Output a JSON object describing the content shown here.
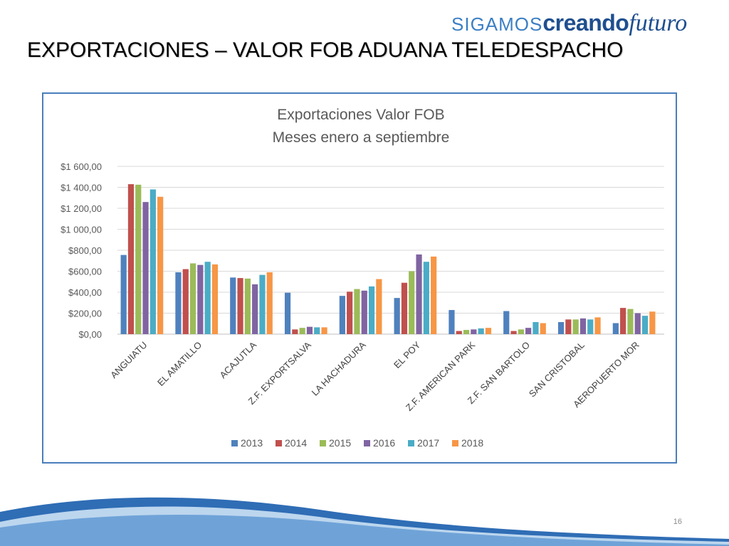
{
  "header": {
    "logo": {
      "part1": "SIGAMOS",
      "part2": "creando",
      "part3": "futuro"
    },
    "title": "EXPORTACIONES –  VALOR FOB ADUANA TELEDESPACHO"
  },
  "footer": {
    "page_number": "16"
  },
  "chart_data": {
    "type": "bar",
    "title": "Exportaciones Valor FOB",
    "subtitle": "Meses enero a septiembre",
    "xlabel": "",
    "ylabel": "",
    "ylim": [
      0,
      1600
    ],
    "yticks": [
      "$0,00",
      "$200,00",
      "$400,00",
      "$600,00",
      "$800,00",
      "$1 000,00",
      "$1 200,00",
      "$1 400,00",
      "$1 600,00"
    ],
    "grid": true,
    "legend_position": "bottom",
    "categories": [
      "ANGUIATU",
      "EL AMATILLO",
      "ACAJUTLA",
      "Z.F. EXPORTSALVA",
      "LA HACHADURA",
      "EL POY",
      "Z.F. AMERICAN PARK",
      "Z.F. SAN BARTOLO",
      "SAN CRISTOBAL",
      "AEROPUERTO MOR"
    ],
    "series": [
      {
        "name": "2013",
        "color": "#4f81bd",
        "values": [
          755,
          590,
          540,
          395,
          365,
          345,
          230,
          220,
          115,
          105
        ]
      },
      {
        "name": "2014",
        "color": "#c0504d",
        "values": [
          1430,
          620,
          535,
          45,
          405,
          490,
          30,
          30,
          140,
          250
        ]
      },
      {
        "name": "2015",
        "color": "#9bbb59",
        "values": [
          1425,
          675,
          530,
          60,
          430,
          600,
          40,
          45,
          140,
          240
        ]
      },
      {
        "name": "2016",
        "color": "#8064a2",
        "values": [
          1260,
          660,
          475,
          70,
          415,
          760,
          45,
          60,
          150,
          200
        ]
      },
      {
        "name": "2017",
        "color": "#4bacc6",
        "values": [
          1380,
          690,
          565,
          65,
          455,
          690,
          55,
          115,
          140,
          175
        ]
      },
      {
        "name": "2018",
        "color": "#f79646",
        "values": [
          1310,
          665,
          590,
          65,
          525,
          740,
          60,
          105,
          160,
          215
        ]
      }
    ]
  }
}
